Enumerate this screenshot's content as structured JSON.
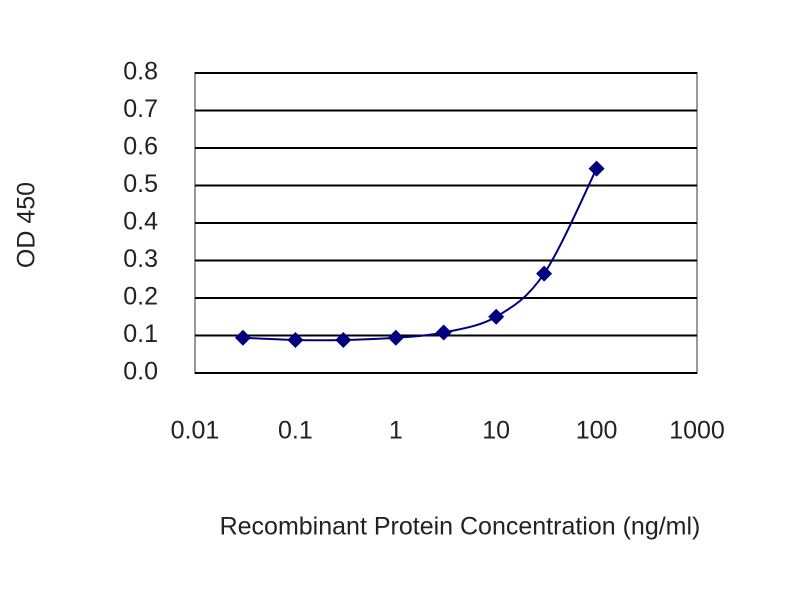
{
  "chart_data": {
    "type": "line",
    "x_label": "Recombinant Protein Concentration (ng/ml)",
    "y_label": "OD 450",
    "x": [
      0.03,
      0.1,
      0.3,
      1,
      3,
      10,
      30,
      100
    ],
    "values": [
      0.094,
      0.088,
      0.088,
      0.094,
      0.108,
      0.15,
      0.265,
      0.545
    ],
    "color": "#00007f",
    "xscale": "log",
    "xlim": [
      0.01,
      1000
    ],
    "xticks": [
      0.01,
      0.1,
      1,
      10,
      100,
      1000
    ],
    "ylim": [
      0,
      0.8
    ],
    "yticks": [
      {
        "value": 0,
        "label": "0.0"
      },
      0.1,
      0.2,
      0.3,
      0.4,
      0.5,
      0.6,
      0.7,
      0.8
    ],
    "grid": true
  }
}
